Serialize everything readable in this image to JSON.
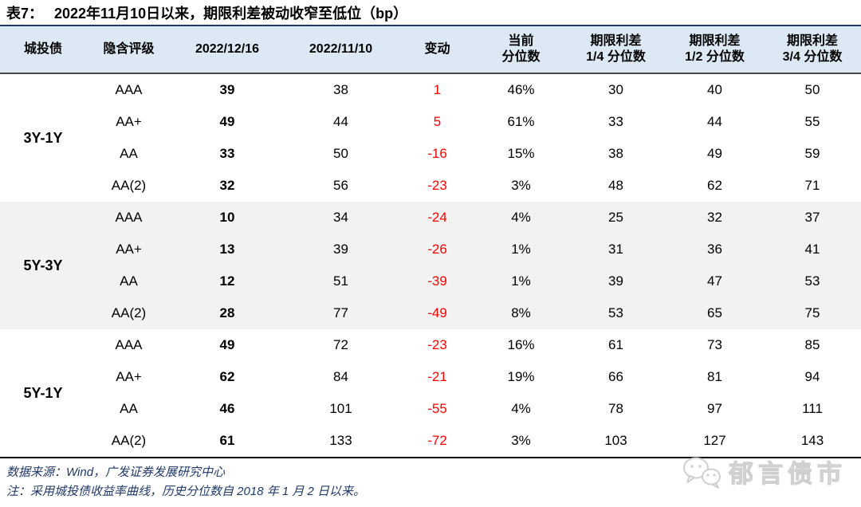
{
  "title": {
    "prefix": "表7：",
    "text": "2022年11月10日以来，期限利差被动收窄至低位（bp）"
  },
  "table": {
    "headers": [
      {
        "line1": "城投债",
        "line2": ""
      },
      {
        "line1": "隐含评级",
        "line2": ""
      },
      {
        "line1": "2022/12/16",
        "line2": ""
      },
      {
        "line1": "2022/11/10",
        "line2": ""
      },
      {
        "line1": "变动",
        "line2": ""
      },
      {
        "line1": "当前",
        "line2": "分位数"
      },
      {
        "line1": "期限利差",
        "line2": "1/4 分位数"
      },
      {
        "line1": "期限利差",
        "line2": "1/2 分位数"
      },
      {
        "line1": "期限利差",
        "line2": "3/4 分位数"
      }
    ]
  },
  "chart_data": {
    "type": "table",
    "title": "表7：2022年11月10日以来，期限利差被动收窄至低位（bp）",
    "columns": [
      "城投债",
      "隐含评级",
      "2022/12/16",
      "2022/11/10",
      "变动",
      "当前分位数",
      "期限利差1/4分位数",
      "期限利差1/2分位数",
      "期限利差3/4分位数"
    ],
    "sections": [
      {
        "group": "3Y-1Y",
        "rows": [
          [
            "AAA",
            "39",
            "38",
            "1",
            "46%",
            "30",
            "40",
            "50"
          ],
          [
            "AA+",
            "49",
            "44",
            "5",
            "61%",
            "33",
            "44",
            "55"
          ],
          [
            "AA",
            "33",
            "50",
            "-16",
            "15%",
            "38",
            "49",
            "59"
          ],
          [
            "AA(2)",
            "32",
            "56",
            "-23",
            "3%",
            "48",
            "62",
            "71"
          ]
        ]
      },
      {
        "group": "5Y-3Y",
        "rows": [
          [
            "AAA",
            "10",
            "34",
            "-24",
            "4%",
            "25",
            "32",
            "37"
          ],
          [
            "AA+",
            "13",
            "39",
            "-26",
            "1%",
            "31",
            "36",
            "41"
          ],
          [
            "AA",
            "12",
            "51",
            "-39",
            "1%",
            "39",
            "47",
            "53"
          ],
          [
            "AA(2)",
            "28",
            "77",
            "-49",
            "8%",
            "53",
            "65",
            "75"
          ]
        ]
      },
      {
        "group": "5Y-1Y",
        "rows": [
          [
            "AAA",
            "49",
            "72",
            "-23",
            "16%",
            "61",
            "73",
            "85"
          ],
          [
            "AA+",
            "62",
            "84",
            "-21",
            "19%",
            "66",
            "81",
            "94"
          ],
          [
            "AA",
            "46",
            "101",
            "-55",
            "4%",
            "78",
            "97",
            "111"
          ],
          [
            "AA(2)",
            "61",
            "133",
            "-72",
            "3%",
            "103",
            "127",
            "143"
          ]
        ]
      }
    ],
    "notes": [
      "数据来源：Wind，广发证券发展研究中心",
      "注：采用城投债收益率曲线，历史分位数自 2018 年 1 月 2 日以来。"
    ]
  },
  "footer": {
    "source": "数据来源：Wind，广发证券发展研究中心",
    "note": "注：采用城投债收益率曲线，历史分位数自 2018 年 1 月 2 日以来。"
  },
  "watermark": {
    "label": "郁言债市",
    "icon": "wechat-icon"
  },
  "colors": {
    "header_bg": "#DCE8F4",
    "alt_band_bg": "#F2F2F2",
    "accent_line": "#1F3864",
    "header_rule": "#4A4A4A",
    "bottom_rule": "#000000",
    "change_red": "#FF0000",
    "footer_text": "#1F3864",
    "watermark_gray": "#D8D8D8"
  }
}
